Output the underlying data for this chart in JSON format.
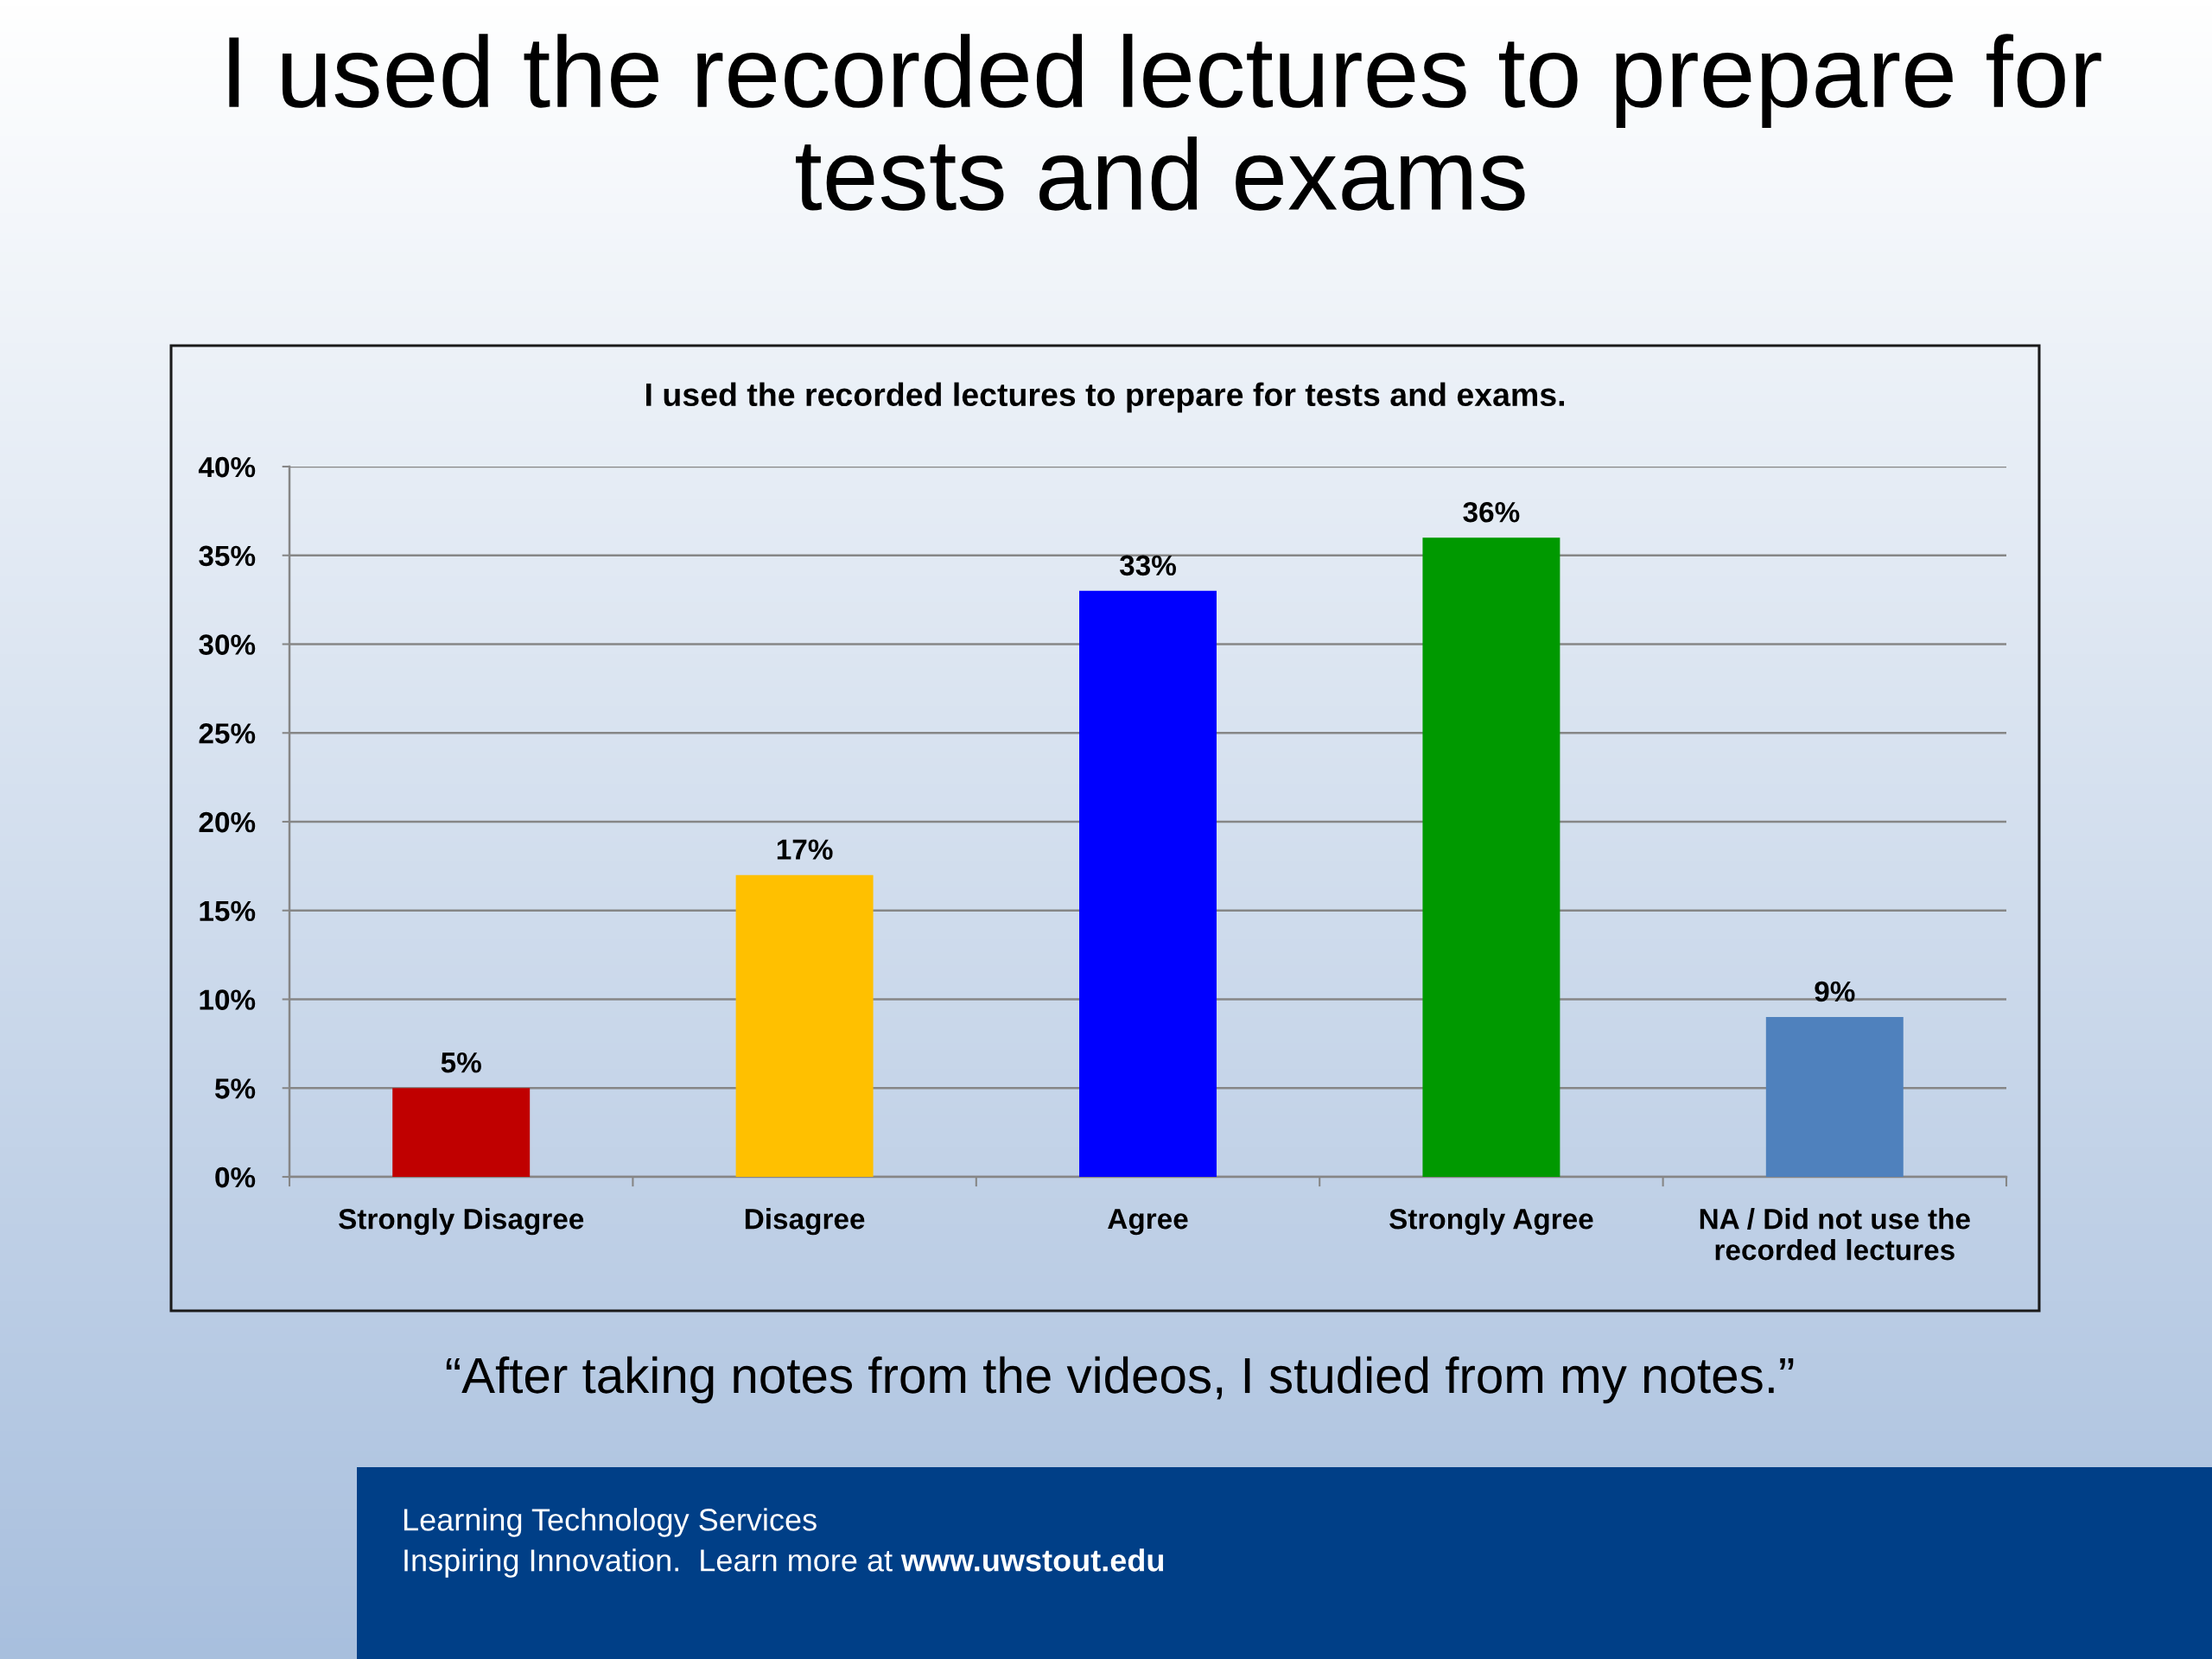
{
  "chart_data": {
    "type": "bar",
    "title": "I used the recorded lectures to prepare for tests and exams",
    "subtitle": "I used the recorded lectures to prepare for tests and exams.",
    "categories": [
      "Strongly Disagree",
      "Disagree",
      "Agree",
      "Strongly Agree",
      "NA / Did not use the recorded lectures"
    ],
    "values": [
      5,
      17,
      33,
      36,
      9
    ],
    "value_labels": [
      "5%",
      "17%",
      "33%",
      "36%",
      "9%"
    ],
    "colors": [
      "#c00000",
      "#ffc000",
      "#0000ff",
      "#009900",
      "#4f81bd"
    ],
    "ylim": [
      0,
      40
    ],
    "yticks": [
      {
        "value": 0,
        "label": "0%"
      },
      {
        "value": 5,
        "label": "5%"
      },
      {
        "value": 10,
        "label": "10%"
      },
      {
        "value": 15,
        "label": "15%"
      },
      {
        "value": 20,
        "label": "20%"
      },
      {
        "value": 25,
        "label": "25%"
      },
      {
        "value": 30,
        "label": "30%"
      },
      {
        "value": 35,
        "label": "35%"
      },
      {
        "value": 40,
        "label": "40%"
      }
    ],
    "grid": "y",
    "annotations": [
      "“After taking notes from the videos, I studied from my notes.”",
      "Learning Technology Services",
      "Inspiring Innovation.  Learn more at",
      "www.uwstout.edu"
    ]
  }
}
